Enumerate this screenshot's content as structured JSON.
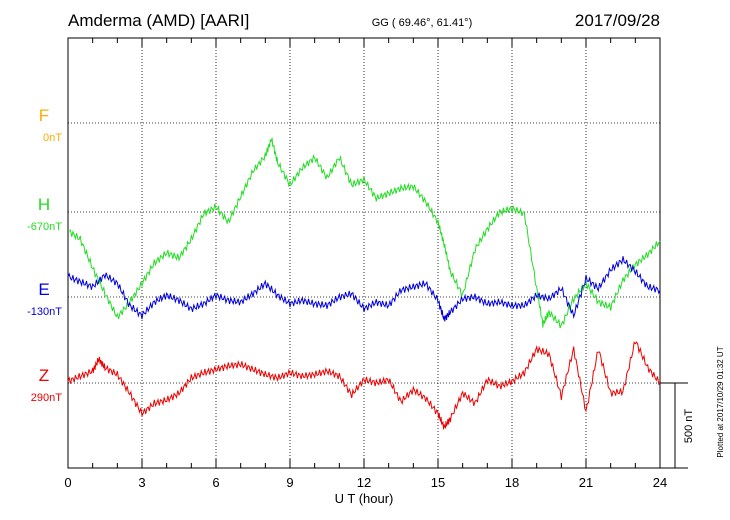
{
  "header": {
    "station": "Amderma (AMD)  [AARI]",
    "coords": "GG ( 69.46°,  61.41°)",
    "date": "2017/09/28"
  },
  "footer": {
    "plotted": "Plotted at 2017/10/29 01:32 UT"
  },
  "colors": {
    "F": "#ffaa00",
    "H": "#22dd22",
    "E": "#0000dd",
    "Z": "#ee0000",
    "axis": "#000000"
  },
  "chart_data": {
    "type": "line",
    "xlabel": "U T (hour)",
    "xlim": [
      0,
      24
    ],
    "x_ticks": [
      0,
      3,
      6,
      9,
      12,
      15,
      18,
      21,
      24
    ],
    "scale_bar": {
      "label": "500 nT",
      "value_nT": 500
    },
    "series": [
      {
        "name": "F",
        "baseline_label": "0nT",
        "color": "#ffaa00",
        "x": [],
        "values": []
      },
      {
        "name": "H",
        "baseline_label": "-670nT",
        "color": "#22dd22",
        "x": [
          0,
          0.5,
          1,
          1.5,
          2,
          2.5,
          3,
          3.5,
          4,
          4.5,
          5,
          5.5,
          6,
          6.5,
          7,
          7.5,
          8,
          8.25,
          8.5,
          9,
          9.5,
          10,
          10.5,
          11,
          11.5,
          12,
          12.5,
          13,
          13.5,
          14,
          14.5,
          15,
          15.25,
          15.5,
          16,
          16.5,
          17,
          17.5,
          18,
          18.5,
          19,
          19.25,
          19.5,
          20,
          20.5,
          21,
          21.5,
          22,
          22.5,
          23,
          23.5,
          24
        ],
        "values": [
          -110,
          -160,
          -330,
          -480,
          -620,
          -530,
          -420,
          -300,
          -240,
          -270,
          -160,
          -10,
          30,
          -60,
          90,
          240,
          330,
          430,
          290,
          160,
          260,
          320,
          200,
          320,
          160,
          190,
          80,
          110,
          140,
          150,
          60,
          -60,
          -190,
          -350,
          -490,
          -220,
          -100,
          0,
          20,
          -10,
          -450,
          -660,
          -590,
          -670,
          -510,
          -420,
          -530,
          -560,
          -400,
          -310,
          -250,
          -170
        ]
      },
      {
        "name": "E",
        "baseline_label": "-130nT",
        "color": "#0000dd",
        "x": [
          0,
          0.5,
          1,
          1.5,
          2,
          2.5,
          3,
          3.5,
          4,
          4.5,
          5,
          5.5,
          6,
          6.5,
          7,
          7.5,
          8,
          8.5,
          9,
          9.5,
          10,
          10.5,
          11,
          11.5,
          12,
          12.5,
          13,
          13.5,
          14,
          14.5,
          15,
          15.25,
          15.5,
          16,
          16.5,
          17,
          17.5,
          18,
          18.5,
          19,
          19.5,
          20,
          20.5,
          21,
          21.5,
          22,
          22.5,
          23,
          23.5,
          24
        ],
        "values": [
          120,
          90,
          60,
          130,
          80,
          -50,
          -110,
          -30,
          10,
          -20,
          -70,
          -40,
          10,
          -20,
          -30,
          20,
          80,
          10,
          -40,
          -20,
          -40,
          -50,
          0,
          20,
          -70,
          -30,
          -50,
          40,
          60,
          80,
          -20,
          -130,
          -90,
          -10,
          0,
          -40,
          -30,
          -50,
          -50,
          10,
          -10,
          50,
          -110,
          110,
          50,
          160,
          220,
          150,
          60,
          40
        ]
      },
      {
        "name": "Z",
        "baseline_label": "290nT",
        "color": "#ee0000",
        "x": [
          0,
          0.5,
          1,
          1.25,
          1.5,
          2,
          2.5,
          3,
          3.5,
          4,
          4.5,
          5,
          5.5,
          6,
          6.5,
          7,
          7.5,
          8,
          8.5,
          9,
          9.5,
          10,
          10.5,
          11,
          11.5,
          12,
          12.5,
          13,
          13.5,
          14,
          14.5,
          15,
          15.25,
          15.5,
          16,
          16.5,
          17,
          17.5,
          18,
          18.5,
          19,
          19.5,
          20,
          20.5,
          21,
          21.5,
          22,
          22.5,
          23,
          23.5,
          24
        ],
        "values": [
          10,
          40,
          70,
          140,
          90,
          50,
          -60,
          -180,
          -120,
          -100,
          -60,
          30,
          60,
          80,
          100,
          110,
          80,
          50,
          30,
          60,
          40,
          50,
          70,
          40,
          -70,
          20,
          0,
          20,
          -110,
          -40,
          -90,
          -180,
          -260,
          -210,
          -60,
          -120,
          20,
          -20,
          10,
          60,
          200,
          170,
          -80,
          200,
          -170,
          200,
          -60,
          -50,
          250,
          90,
          0
        ]
      }
    ]
  }
}
